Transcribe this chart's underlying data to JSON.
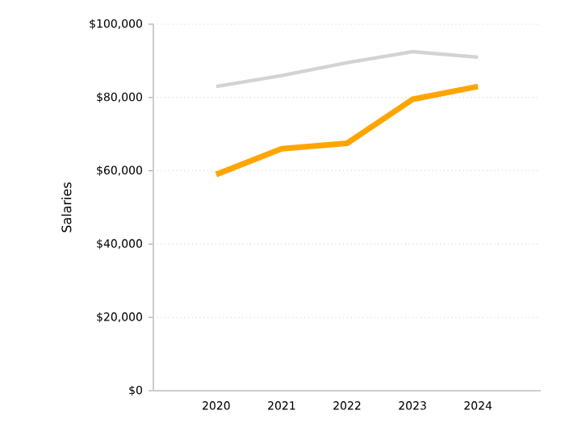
{
  "chart_data": {
    "type": "line",
    "ylabel": "Salaries",
    "categories": [
      "2020",
      "2021",
      "2022",
      "2023",
      "2024"
    ],
    "series": [
      {
        "color": "#d3d3d3",
        "values": [
          83000,
          86000,
          89500,
          92500,
          91000
        ]
      },
      {
        "color": "#ffa500",
        "values": [
          59000,
          66000,
          67500,
          79500,
          83000
        ]
      }
    ],
    "ylim": [
      0,
      100000
    ],
    "yticks": [
      {
        "value": 0,
        "label": "$0"
      },
      {
        "value": 20000,
        "label": "$20,000"
      },
      {
        "value": 40000,
        "label": "$40,000"
      },
      {
        "value": 60000,
        "label": "$60,000"
      },
      {
        "value": 80000,
        "label": "$80,000"
      },
      {
        "value": 100000,
        "label": "$100,000"
      }
    ],
    "grid": "y",
    "marker": "none",
    "line_style": "solid"
  }
}
